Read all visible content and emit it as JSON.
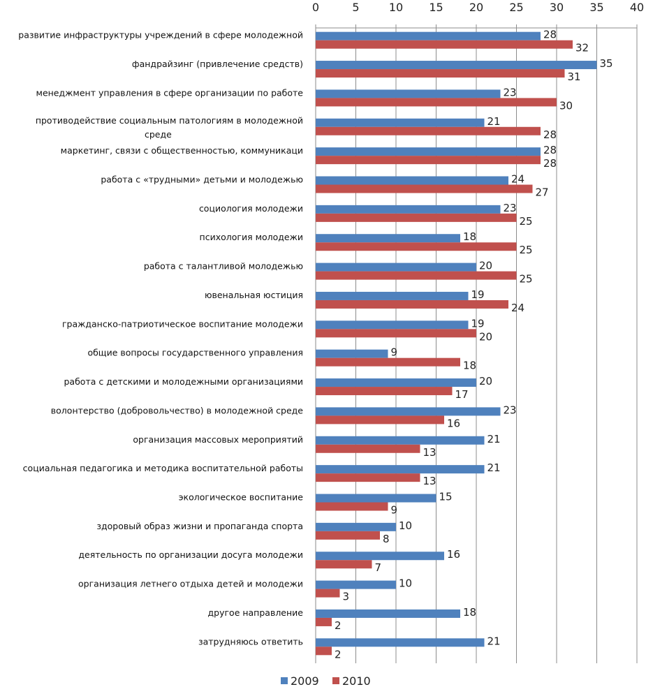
{
  "chart_data": {
    "type": "bar",
    "orientation": "horizontal",
    "categories": [
      [
        "развитие инфраструктуры учреждений в сфере молодежной"
      ],
      [
        "фандрайзинг (привлечение средств)"
      ],
      [
        "менеджмент управления в сфере организации по работе"
      ],
      [
        "противодействие социальным патологиям в молодежной",
        "среде"
      ],
      [
        "маркетинг, связи с общественностью, коммуникаци"
      ],
      [
        "работа с «трудными» детьми и молодежью"
      ],
      [
        "социология молодежи"
      ],
      [
        "психология молодежи"
      ],
      [
        "работа с талантливой молодежью"
      ],
      [
        "ювенальная юстиция"
      ],
      [
        "гражданско-патриотическое воспитание молодежи"
      ],
      [
        "общие вопросы государственного управления"
      ],
      [
        "работа с детскими и молодежными организациями"
      ],
      [
        "волонтерство (добровольчество) в молодежной среде"
      ],
      [
        "организация массовых мероприятий"
      ],
      [
        "социальная педагогика и методика воспитательной работы"
      ],
      [
        "экологическое воспитание"
      ],
      [
        "здоровый образ жизни и пропаганда спорта"
      ],
      [
        "деятельность по организации досуга молодежи"
      ],
      [
        "организация летнего отдыха детей и молодежи"
      ],
      [
        "другое направление"
      ],
      [
        "затрудняюсь ответить"
      ]
    ],
    "series": [
      {
        "name": "2009",
        "color": "#4f81bd",
        "values": [
          28,
          35,
          23,
          21,
          28,
          24,
          23,
          18,
          20,
          19,
          19,
          9,
          20,
          23,
          21,
          21,
          15,
          10,
          16,
          10,
          18,
          21
        ]
      },
      {
        "name": "2010",
        "color": "#c0504d",
        "values": [
          32,
          31,
          30,
          28,
          28,
          27,
          25,
          25,
          25,
          24,
          20,
          18,
          17,
          16,
          13,
          13,
          9,
          8,
          7,
          3,
          2,
          2
        ]
      }
    ],
    "x_ticks": [
      "0",
      "5",
      "10",
      "15",
      "20",
      "25",
      "30",
      "35",
      "40"
    ],
    "xlim": [
      0,
      40
    ],
    "x_axis_position": "top",
    "grid": "vertical",
    "legend_position": "bottom"
  }
}
